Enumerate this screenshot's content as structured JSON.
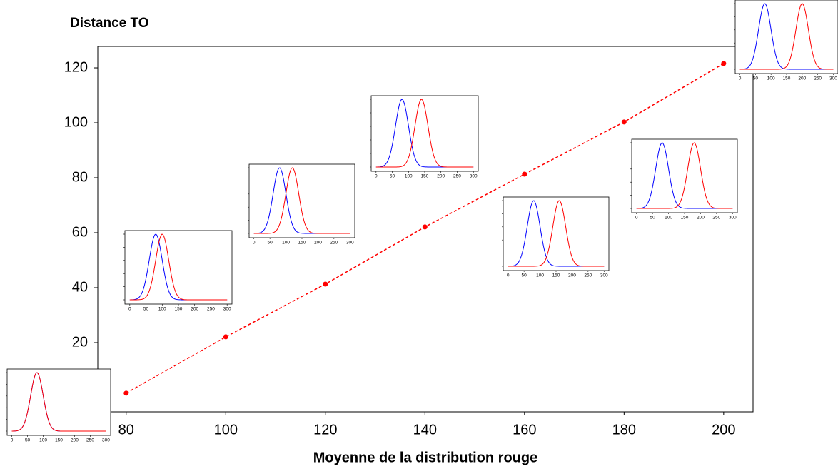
{
  "chart_data": {
    "type": "line",
    "title": "Distance TO",
    "x_label": "Moyenne de la distribution rouge",
    "x": [
      80,
      100,
      120,
      140,
      160,
      180,
      200
    ],
    "series": [
      {
        "name": "Distance TO",
        "color": "#ff0000",
        "values": [
          1.6,
          22.1,
          41.3,
          62.1,
          81.3,
          100.3,
          121.6
        ]
      }
    ],
    "xlim": [
      74.3,
      205.9
    ],
    "ylim": [
      -5.2,
      127.8
    ],
    "xticks": [
      80,
      100,
      120,
      140,
      160,
      180,
      200
    ],
    "yticks": [
      20,
      40,
      60,
      80,
      100,
      120
    ],
    "insets": {
      "blue_mean": 80,
      "blue_color": "#0000ff",
      "red_color": "#ff0000",
      "sd": 20,
      "xlim": [
        -15,
        315
      ],
      "xticks": [
        0,
        50,
        100,
        150,
        200,
        250,
        300
      ]
    }
  }
}
